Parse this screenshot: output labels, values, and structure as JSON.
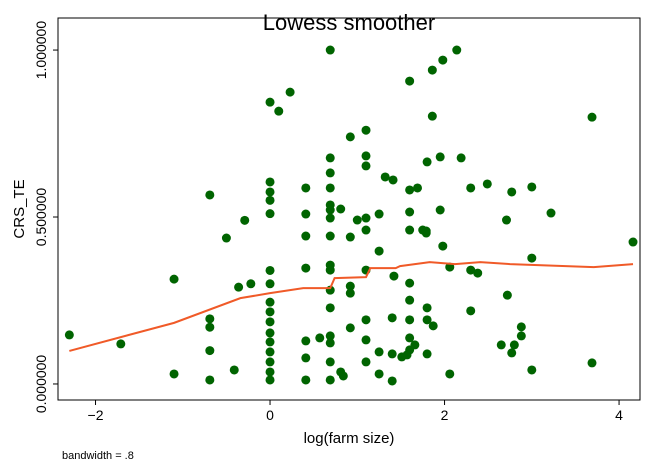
{
  "chart_data": {
    "type": "scatter",
    "title": "Lowess smoother",
    "x_label": "log(farm size)",
    "y_label": "CRS_TE",
    "note": "bandwidth = .8",
    "xlim": [
      -2.43,
      4.24
    ],
    "ylim": [
      -0.048,
      1.096
    ],
    "xticks": [
      {
        "value": -2,
        "label": "−2"
      },
      0,
      2,
      4
    ],
    "yticks": [
      {
        "value": 0,
        "label": "0.000000"
      },
      {
        "value": 0.5,
        "label": "0.500000"
      },
      {
        "value": 1,
        "label": "1.000000"
      }
    ],
    "color": "#006400",
    "x": [
      -2.3,
      -1.71,
      -1.1,
      -1.1,
      -0.69,
      -0.69,
      -0.69,
      -0.69,
      -0.69,
      -0.5,
      -0.41,
      -0.36,
      -0.29,
      -0.22,
      0,
      0.1,
      0.23,
      0,
      0,
      0,
      0,
      0,
      0,
      0,
      0,
      0,
      0,
      0,
      0,
      0,
      0,
      0,
      0.41,
      0.41,
      0.41,
      0.41,
      0.41,
      0.41,
      0.41,
      0.57,
      0.69,
      0.69,
      0.69,
      0.69,
      0.69,
      0.69,
      0.69,
      0.69,
      0.69,
      0.69,
      0.69,
      0.69,
      0.69,
      0.69,
      0.69,
      0.69,
      0.81,
      0.81,
      0.84,
      0.92,
      0.92,
      0.92,
      0.92,
      0.92,
      1.0,
      1.1,
      1.1,
      1.1,
      1.1,
      1.1,
      1.1,
      1.1,
      1.1,
      1.1,
      1.25,
      1.25,
      1.25,
      1.25,
      1.32,
      1.41,
      1.4,
      1.4,
      1.4,
      1.42,
      1.51,
      1.57,
      1.6,
      1.6,
      1.6,
      1.6,
      1.6,
      1.6,
      1.6,
      1.6,
      1.6,
      1.66,
      1.69,
      1.75,
      1.79,
      1.79,
      1.8,
      1.8,
      1.8,
      1.8,
      1.86,
      1.86,
      1.87,
      1.95,
      1.95,
      1.98,
      1.98,
      2.06,
      2.06,
      2.14,
      2.19,
      2.3,
      2.3,
      2.38,
      2.3,
      2.49,
      2.65,
      2.71,
      2.72,
      2.77,
      2.77,
      2.8,
      2.88,
      2.88,
      3.0,
      3.0,
      3.0,
      3.22,
      3.69,
      3.69,
      4.16
    ],
    "values": [
      0.147,
      0.12,
      0.314,
      0.03,
      0.566,
      0.195,
      0.17,
      0.1,
      0.012,
      0.437,
      0.042,
      0.29,
      0.49,
      0.3,
      0.844,
      0.817,
      0.874,
      0.605,
      0.575,
      0.55,
      0.51,
      0.34,
      0.3,
      0.245,
      0.216,
      0.186,
      0.153,
      0.126,
      0.096,
      0.066,
      0.036,
      0.012,
      0.587,
      0.509,
      0.443,
      0.347,
      0.129,
      0.078,
      0.012,
      0.138,
      1.0,
      0.677,
      0.632,
      0.587,
      0.536,
      0.521,
      0.497,
      0.443,
      0.356,
      0.341,
      0.281,
      0.228,
      0.144,
      0.123,
      0.066,
      0.012,
      0.524,
      0.036,
      0.024,
      0.74,
      0.44,
      0.293,
      0.272,
      0.168,
      0.491,
      0.76,
      0.683,
      0.653,
      0.497,
      0.461,
      0.341,
      0.192,
      0.132,
      0.066,
      0.509,
      0.398,
      0.096,
      0.03,
      0.62,
      0.611,
      0.198,
      0.09,
      0.009,
      0.323,
      0.081,
      0.087,
      0.907,
      0.581,
      0.515,
      0.461,
      0.302,
      0.251,
      0.192,
      0.138,
      0.102,
      0.117,
      0.587,
      0.461,
      0.458,
      0.452,
      0.665,
      0.228,
      0.192,
      0.09,
      0.94,
      0.802,
      0.174,
      0.68,
      0.521,
      0.97,
      0.413,
      0.35,
      0.03,
      1.0,
      0.677,
      0.587,
      0.341,
      0.332,
      0.219,
      0.599,
      0.117,
      0.491,
      0.266,
      0.575,
      0.093,
      0.117,
      0.171,
      0.144,
      0.377,
      0.59,
      0.042,
      0.512,
      0.799,
      0.063,
      0.425
    ],
    "lowess": {
      "color": "#f05a28",
      "x": [
        -2.3,
        -1.1,
        -0.34,
        0,
        0.38,
        0.69,
        0.74,
        1.1,
        1.15,
        1.44,
        1.49,
        1.83,
        2.12,
        2.41,
        2.75,
        3.71,
        4.16
      ],
      "values": [
        0.099,
        0.183,
        0.257,
        0.272,
        0.287,
        0.287,
        0.317,
        0.32,
        0.347,
        0.347,
        0.353,
        0.365,
        0.359,
        0.365,
        0.359,
        0.35,
        0.359
      ]
    }
  }
}
